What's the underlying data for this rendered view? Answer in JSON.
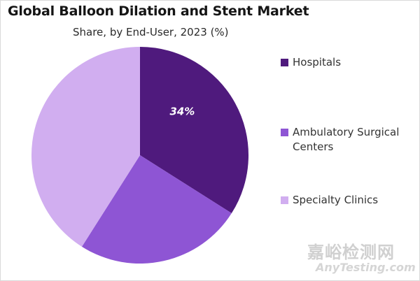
{
  "chart_data": {
    "type": "pie",
    "title": "Global Balloon Dilation and Stent Market",
    "subtitle": "Share, by End-User, 2023 (%)",
    "categories": [
      "Hospitals",
      "Ambulatory Surgical Centers",
      "Specialty Clinics"
    ],
    "values": [
      34,
      25,
      41
    ],
    "data_labels": [
      "34%",
      "",
      ""
    ],
    "colors": [
      "#4f1a7d",
      "#8e55d4",
      "#d1aef0"
    ],
    "legend_position": "right",
    "grid": false
  },
  "legend": {
    "items": [
      {
        "label": "Hospitals",
        "color": "#4f1a7d"
      },
      {
        "label": "Ambulatory Surgical Centers",
        "color": "#8e55d4"
      },
      {
        "label": "Specialty Clinics",
        "color": "#d1aef0"
      }
    ]
  },
  "watermark": {
    "cn": "嘉峪检测网",
    "en": "AnyTesting.com"
  }
}
